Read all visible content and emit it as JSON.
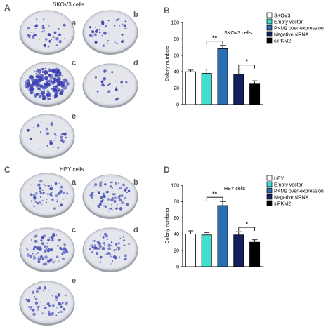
{
  "panels": {
    "A": "A",
    "B": "B",
    "C": "C",
    "D": "D"
  },
  "plates_top": {
    "title": "SKOV3 cells",
    "labels": [
      "a",
      "b",
      "c",
      "d",
      "e"
    ]
  },
  "plates_bottom": {
    "title": "HEY cells",
    "labels": [
      "a",
      "b",
      "c",
      "d",
      "e"
    ]
  },
  "colors": {
    "white": "#ffffff",
    "cyan": "#40e0d0",
    "blue": "#2a6db0",
    "navy": "#14215a",
    "black": "#000000",
    "stain_top": "#3b3fb0",
    "stain_bottom": "#4b55b8"
  },
  "chart_data": [
    {
      "type": "bar",
      "panel": "B",
      "title": "SKOV3 cells",
      "ylabel": "Colony numbers",
      "ylim": [
        0,
        100
      ],
      "yticks": [
        "0",
        "20",
        "40",
        "60",
        "80",
        "100"
      ],
      "categories": [
        "SKOV3",
        "Empty vector",
        "PKM2 over-expression",
        "Negative siRNA",
        "siPKM2"
      ],
      "values": [
        40,
        38,
        68,
        37,
        25
      ],
      "errors": [
        2,
        5,
        4,
        6,
        4
      ],
      "fills": [
        "#ffffff",
        "#40e0d0",
        "#2a6db0",
        "#14215a",
        "#000000"
      ],
      "legend": [
        "SKOV3",
        "Empty vector",
        "PKM2 over-expression",
        "Negative siRNA",
        "siPKM2"
      ],
      "legend_position": "top-right",
      "significance": [
        {
          "pair": [
            1,
            2
          ],
          "label": "**"
        },
        {
          "pair": [
            3,
            4
          ],
          "label": "*"
        }
      ]
    },
    {
      "type": "bar",
      "panel": "D",
      "title": "HEY cells",
      "ylabel": "Colony numbers",
      "ylim": [
        0,
        100
      ],
      "yticks": [
        "0",
        "20",
        "40",
        "60",
        "80",
        "100"
      ],
      "categories": [
        "HEY",
        "Empty vector",
        "PKM2 over-expression",
        "Negative siRNA",
        "siPKM2"
      ],
      "values": [
        40,
        39,
        75,
        39,
        30
      ],
      "errors": [
        4,
        3,
        5,
        4,
        3
      ],
      "fills": [
        "#ffffff",
        "#40e0d0",
        "#2a6db0",
        "#14215a",
        "#000000"
      ],
      "legend": [
        "HEY",
        "Empty vector",
        "PKM2 over-expression",
        "Negative siRNA",
        "siPKM2"
      ],
      "legend_position": "top-right",
      "significance": [
        {
          "pair": [
            1,
            2
          ],
          "label": "**"
        },
        {
          "pair": [
            3,
            4
          ],
          "label": "*"
        }
      ]
    }
  ]
}
